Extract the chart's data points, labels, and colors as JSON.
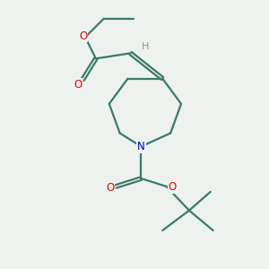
{
  "bg_color": "#edf2ef",
  "bond_color": "#3a7a6a",
  "bond_width": 1.6,
  "dbo": 0.06,
  "atom_colors": {
    "O": "#ee0000",
    "N": "#0000cc",
    "H": "#7a9a90"
  },
  "figsize": [
    3.0,
    3.0
  ],
  "dpi": 100
}
